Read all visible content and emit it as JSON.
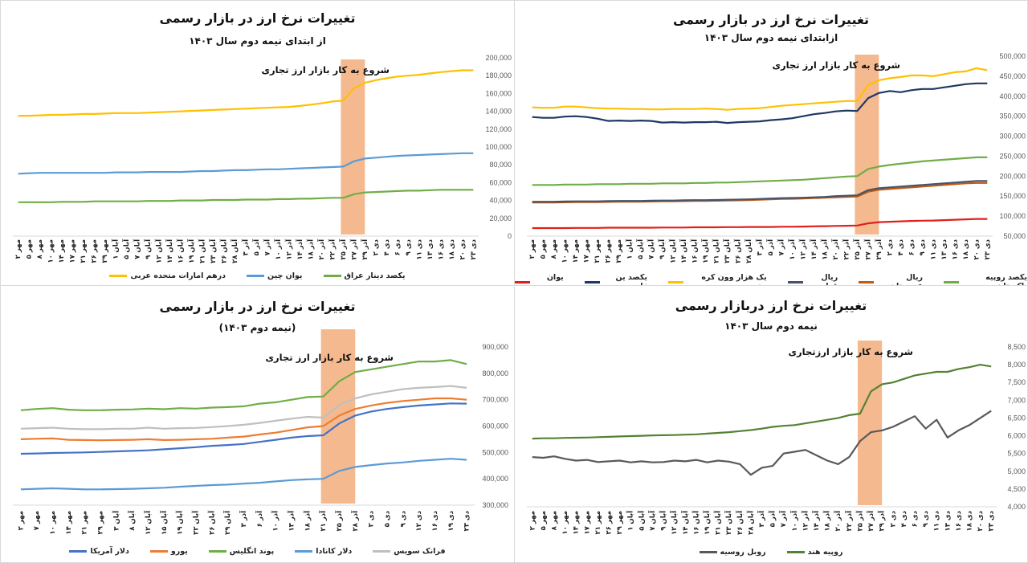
{
  "chart_data": [
    {
      "type": "line",
      "title": "تغییرات نرخ ارز در بازار رسمی",
      "subtitle": "از ابتدای نیمه دوم سال ۱۴۰۳",
      "annotation": "شروع به کار بازار ارز تجاری",
      "highlight": {
        "from": "۲۵ آذر",
        "to": "۲۹ آذر",
        "color": "#f4b183"
      },
      "ylim": [
        0,
        200000
      ],
      "yticks": [
        "0",
        "20,000",
        "40,000",
        "60,000",
        "80,000",
        "100,000",
        "120,000",
        "140,000",
        "160,000",
        "180,000",
        "200,000"
      ],
      "grid": false,
      "legend_position": "bottom",
      "categories": [
        "۲ مهر",
        "۵ مهر",
        "۸ مهر",
        "۱۰ مهر",
        "۱۴ مهر",
        "۱۷ مهر",
        "۲۱ مهر",
        "۲۶ مهر",
        "۲۹ مهر",
        "۱ آبان",
        "۵ آبان",
        "۷ آبان",
        "۹ آبان",
        "۱۲ آبان",
        "۱۴ آبان",
        "۱۶ آبان",
        "۱۹ آبان",
        "۲۱ آبان",
        "۲۳ آبان",
        "۲۶ آبان",
        "۲۸ آبان",
        "۳ آذر",
        "۵ آذر",
        "۷ آذر",
        "۱۰ آذر",
        "۱۲ آذر",
        "۱۴ آذر",
        "۱۸ آذر",
        "۲۰ آذر",
        "۲۲ آذر",
        "۲۵ آذر",
        "۲۷ آذر",
        "۲۹ آذر",
        "۲ دی",
        "۴ دی",
        "۶ دی",
        "۹ دی",
        "۱۱ دی",
        "۱۳ دی",
        "۱۶ دی",
        "۱۸ دی",
        "۲۰ دی",
        "۲۳ دی"
      ],
      "series": [
        {
          "name": "یکصد دینار عراق",
          "color": "#70ad47",
          "values": [
            38000,
            38000,
            38000,
            38000,
            38500,
            38500,
            38500,
            39000,
            39000,
            39000,
            39000,
            39000,
            39500,
            39500,
            39500,
            40000,
            40000,
            40000,
            40500,
            40500,
            40500,
            41000,
            41000,
            41000,
            41500,
            41500,
            42000,
            42000,
            42500,
            43000,
            43000,
            47000,
            49000,
            49500,
            50000,
            50500,
            51000,
            51000,
            51500,
            52000,
            52000,
            52000,
            52000
          ]
        },
        {
          "name": "یوان چین",
          "color": "#5b9bd5",
          "values": [
            70000,
            70500,
            71000,
            71000,
            71000,
            71000,
            71000,
            71000,
            71000,
            71500,
            71500,
            71500,
            72000,
            72000,
            72000,
            72000,
            72500,
            73000,
            73000,
            73500,
            74000,
            74000,
            74500,
            75000,
            75000,
            75500,
            76000,
            76500,
            77000,
            77500,
            78000,
            84000,
            87000,
            88000,
            89000,
            90000,
            90500,
            91000,
            91500,
            92000,
            92500,
            93000,
            93000
          ]
        },
        {
          "name": "درهم امارات متحده عربی",
          "color": "#ffc000",
          "values": [
            135000,
            135000,
            135500,
            136000,
            136000,
            136500,
            137000,
            137000,
            137500,
            138000,
            138000,
            138000,
            138500,
            139000,
            139500,
            140000,
            140500,
            141000,
            141500,
            142000,
            142500,
            143000,
            143500,
            144000,
            144500,
            145000,
            146000,
            147500,
            149000,
            151000,
            152000,
            166000,
            172000,
            175000,
            177000,
            179000,
            180000,
            181000,
            182500,
            184000,
            185000,
            186000,
            186000
          ]
        }
      ]
    },
    {
      "type": "line",
      "title": "تغییرات نرخ ارز در بازار رسمی",
      "subtitle": "ازابتدای نیمه دوم سال ۱۴۰۳",
      "annotation": "شروع به کار بازار ارز تجاری",
      "highlight": {
        "from": "۲۵ آذر",
        "to": "۲۹ آذر",
        "color": "#f4b183"
      },
      "ylim": [
        50000,
        500000
      ],
      "yticks": [
        "50,000",
        "100,000",
        "150,000",
        "200,000",
        "250,000",
        "300,000",
        "350,000",
        "400,000",
        "450,000",
        "500,000"
      ],
      "grid": false,
      "legend_position": "bottom",
      "categories": [
        "۲ مهر",
        "۵ مهر",
        "۸ مهر",
        "۱۰ مهر",
        "۱۴ مهر",
        "۱۷ مهر",
        "۲۱ مهر",
        "۲۶ مهر",
        "۲۹ مهر",
        "۱ آبان",
        "۵ آبان",
        "۷ آبان",
        "۹ آبان",
        "۱۲ آبان",
        "۱۴ آبان",
        "۱۶ آبان",
        "۱۹ آبان",
        "۲۱ آبان",
        "۲۳ آبان",
        "۲۶ آبان",
        "۲۸ آبان",
        "۳ آذر",
        "۵ آذر",
        "۷ آذر",
        "۱۰ آذر",
        "۱۲ آذر",
        "۱۴ آذر",
        "۱۸ آذر",
        "۲۰ آذر",
        "۲۲ آذر",
        "۲۵ آذر",
        "۲۷ آذر",
        "۲۹ آذر",
        "۲ دی",
        "۴ دی",
        "۶ دی",
        "۹ دی",
        "۱۱ دی",
        "۱۳ دی",
        "۱۶ دی",
        "۱۸ دی",
        "۲۰ دی",
        "۲۳ دی"
      ],
      "series": [
        {
          "name": "یکصد روپیه پاکستان",
          "color": "#70ad47",
          "values": [
            178000,
            178000,
            178000,
            179000,
            179000,
            179000,
            180000,
            180000,
            180000,
            181000,
            181000,
            181000,
            182000,
            182000,
            182000,
            183000,
            183000,
            184000,
            184000,
            185000,
            186000,
            187000,
            188000,
            189000,
            190000,
            191000,
            193000,
            195000,
            197000,
            199000,
            200000,
            218000,
            224000,
            228000,
            231000,
            234000,
            237000,
            239000,
            241000,
            243000,
            245000,
            247000,
            247000
          ]
        },
        {
          "name": "ریال عربستان",
          "color": "#c55a11",
          "values": [
            134000,
            134000,
            134000,
            134500,
            135000,
            135000,
            135000,
            135500,
            136000,
            136000,
            136000,
            136500,
            137000,
            137000,
            137500,
            138000,
            138000,
            138500,
            139000,
            139500,
            140000,
            141000,
            142000,
            143000,
            143500,
            144000,
            145000,
            146000,
            147000,
            148000,
            149000,
            161000,
            166000,
            168000,
            170000,
            172000,
            174000,
            176000,
            178000,
            180000,
            182000,
            183000,
            183000
          ]
        },
        {
          "name": "ریال قطر",
          "color": "#44546a",
          "values": [
            136000,
            136000,
            136000,
            136500,
            137000,
            137000,
            137000,
            137500,
            138000,
            138000,
            138000,
            138500,
            139000,
            139000,
            139500,
            140000,
            140000,
            140500,
            141000,
            141500,
            142000,
            143000,
            144000,
            145000,
            145500,
            146000,
            147000,
            148000,
            150000,
            151000,
            152000,
            165000,
            170000,
            172000,
            174000,
            176000,
            178000,
            180000,
            182000,
            184000,
            186000,
            188000,
            188000
          ]
        },
        {
          "name": "یک هزار وون کره جنوبی",
          "color": "#ffc000",
          "values": [
            372000,
            371000,
            371000,
            374000,
            374000,
            372000,
            370000,
            369000,
            369000,
            368000,
            368000,
            367000,
            367000,
            368000,
            368000,
            368000,
            369000,
            368000,
            366000,
            368000,
            369000,
            370000,
            373000,
            376000,
            378000,
            380000,
            382000,
            384000,
            386000,
            388000,
            388000,
            428000,
            440000,
            445000,
            448000,
            452000,
            452000,
            450000,
            455000,
            460000,
            462000,
            470000,
            465000
          ]
        },
        {
          "name": "یکصد ین ژاپن",
          "color": "#1f3864",
          "values": [
            348000,
            346000,
            346000,
            349000,
            350000,
            348000,
            344000,
            338000,
            339000,
            338000,
            339000,
            338000,
            334000,
            335000,
            334000,
            335000,
            335000,
            336000,
            333000,
            335000,
            336000,
            337000,
            340000,
            342000,
            345000,
            350000,
            355000,
            358000,
            362000,
            364000,
            363000,
            395000,
            408000,
            413000,
            410000,
            415000,
            418000,
            418000,
            422000,
            426000,
            430000,
            432000,
            432000
          ]
        },
        {
          "name": "یوان چین",
          "color": "#e0201e",
          "values": [
            70000,
            70000,
            70000,
            70000,
            70500,
            70500,
            70500,
            71000,
            71000,
            71000,
            71000,
            71000,
            71500,
            71500,
            71500,
            72000,
            72000,
            72000,
            72500,
            72500,
            73000,
            73000,
            73000,
            73500,
            73500,
            74000,
            74500,
            75000,
            75500,
            76000,
            76500,
            82000,
            85000,
            86000,
            87000,
            88000,
            88500,
            89000,
            90000,
            91000,
            92000,
            93000,
            93000
          ]
        }
      ]
    },
    {
      "type": "line",
      "title": "تغییرات نرخ ارز در بازار رسمی",
      "subtitle": "(نیمه دوم ۱۴۰۳)",
      "annotation": "شروع به کار بازار ارز تجاری",
      "highlight": {
        "from": "۲۱ آذر",
        "to": "۲۸ آذر",
        "color": "#f4b183"
      },
      "ylim": [
        300000,
        900000
      ],
      "yticks": [
        "300,000",
        "400,000",
        "500,000",
        "600,000",
        "700,000",
        "800,000",
        "900,000"
      ],
      "grid": false,
      "legend_position": "bottom",
      "categories": [
        "۲ مهر",
        "۷ مهر",
        "۱۰ مهر",
        "۱۴ مهر",
        "۲۱ مهر",
        "۲۹ مهر",
        "۳ آبان",
        "۸ آبان",
        "۱۲ آبان",
        "۱۵ آبان",
        "۱۹ آبان",
        "۲۲ آبان",
        "۲۶ آبان",
        "۲۹ آبان",
        "۳ آذر",
        "۶ آذر",
        "۱۰ آذر",
        "۱۳ آذر",
        "۱۸ آذر",
        "۲۱ آذر",
        "۲۵ آذر",
        "۲۸ آذر",
        "۲ دی",
        "۵ دی",
        "۹ دی",
        "۱۲ دی",
        "۱۶ دی",
        "۱۹ دی",
        "۲۳ دی"
      ],
      "series": [
        {
          "name": "فرانک سویس",
          "color": "#bfbfbf",
          "values": [
            590000,
            592000,
            594000,
            590000,
            588000,
            588000,
            590000,
            590000,
            594000,
            590000,
            592000,
            593000,
            596000,
            600000,
            605000,
            612000,
            620000,
            628000,
            635000,
            632000,
            680000,
            705000,
            720000,
            730000,
            740000,
            745000,
            748000,
            752000,
            745000
          ]
        },
        {
          "name": "دلار کانادا",
          "color": "#5b9bd5",
          "values": [
            360000,
            362000,
            364000,
            362000,
            360000,
            360000,
            361000,
            362000,
            364000,
            366000,
            370000,
            373000,
            376000,
            378000,
            382000,
            385000,
            390000,
            395000,
            398000,
            400000,
            430000,
            445000,
            452000,
            458000,
            462000,
            468000,
            472000,
            476000,
            472000
          ]
        },
        {
          "name": "پوند انگلیس",
          "color": "#70ad47",
          "values": [
            660000,
            665000,
            668000,
            662000,
            660000,
            660000,
            662000,
            663000,
            666000,
            664000,
            668000,
            666000,
            670000,
            672000,
            675000,
            685000,
            690000,
            700000,
            710000,
            712000,
            770000,
            805000,
            815000,
            825000,
            835000,
            845000,
            845000,
            850000,
            835000
          ]
        },
        {
          "name": "یورو",
          "color": "#ed7d31",
          "values": [
            550000,
            552000,
            553000,
            548000,
            547000,
            546000,
            547000,
            548000,
            550000,
            547000,
            548000,
            550000,
            552000,
            556000,
            560000,
            568000,
            575000,
            585000,
            595000,
            600000,
            640000,
            665000,
            678000,
            688000,
            695000,
            700000,
            705000,
            705000,
            700000
          ]
        },
        {
          "name": "دلار آمریکا",
          "color": "#4472c4",
          "values": [
            495000,
            496000,
            498000,
            499000,
            500000,
            502000,
            504000,
            506000,
            508000,
            512000,
            516000,
            520000,
            525000,
            528000,
            532000,
            540000,
            548000,
            556000,
            562000,
            565000,
            610000,
            640000,
            655000,
            665000,
            672000,
            678000,
            682000,
            686000,
            685000
          ]
        }
      ]
    },
    {
      "type": "line",
      "title": "تغییرات نرخ ارز دربازار رسمی",
      "subtitle": "نیمه دوم سال ۱۴۰۳",
      "annotation": "شروع به کار بازار ارزتجاری",
      "highlight": {
        "from": "۲۵ آذر",
        "to": "۲۹ آذر",
        "color": "#f4b183"
      },
      "ylim": [
        4000,
        8500
      ],
      "yticks": [
        "4,000",
        "4,500",
        "5,000",
        "5,500",
        "6,000",
        "6,500",
        "7,000",
        "7,500",
        "8,000",
        "8,500"
      ],
      "grid": false,
      "legend_position": "bottom",
      "categories": [
        "۲ مهر",
        "۵ مهر",
        "۸ مهر",
        "۱۰ مهر",
        "۱۴ مهر",
        "۱۷ مهر",
        "۲۱ مهر",
        "۲۶ مهر",
        "۲۹ مهر",
        "۱ آبان",
        "۵ آبان",
        "۷ آبان",
        "۹ آبان",
        "۱۲ آبان",
        "۱۴ آبان",
        "۱۶ آبان",
        "۱۹ آبان",
        "۲۱ آبان",
        "۲۳ آبان",
        "۲۶ آبان",
        "۲۸ آبان",
        "۳ آذر",
        "۵ آذر",
        "۷ آذر",
        "۱۰ آذر",
        "۱۲ آذر",
        "۱۴ آذر",
        "۱۸ آذر",
        "۲۰ آذر",
        "۲۲ آذر",
        "۲۵ آذر",
        "۲۷ آذر",
        "۲۹ آذر",
        "۲ دی",
        "۴ دی",
        "۶ دی",
        "۹ دی",
        "۱۱ دی",
        "۱۳ دی",
        "۱۶ دی",
        "۱۸ دی",
        "۲۰ دی",
        "۲۳ دی"
      ],
      "series": [
        {
          "name": "روپیه هند",
          "color": "#548235",
          "values": [
            5920,
            5930,
            5930,
            5940,
            5945,
            5950,
            5960,
            5970,
            5980,
            5990,
            6000,
            6010,
            6015,
            6020,
            6030,
            6040,
            6060,
            6080,
            6100,
            6130,
            6160,
            6200,
            6250,
            6280,
            6300,
            6350,
            6400,
            6450,
            6500,
            6580,
            6620,
            7250,
            7450,
            7500,
            7600,
            7700,
            7750,
            7800,
            7800,
            7880,
            7930,
            8000,
            7950
          ]
        },
        {
          "name": "روبل روسیه",
          "color": "#595959",
          "values": [
            5400,
            5380,
            5420,
            5350,
            5300,
            5320,
            5260,
            5280,
            5300,
            5250,
            5280,
            5250,
            5260,
            5300,
            5280,
            5320,
            5250,
            5300,
            5270,
            5200,
            4900,
            5100,
            5150,
            5500,
            5550,
            5600,
            5450,
            5300,
            5200,
            5400,
            5850,
            6100,
            6150,
            6250,
            6400,
            6550,
            6200,
            6450,
            5950,
            6150,
            6300,
            6500,
            6700
          ]
        }
      ]
    }
  ]
}
